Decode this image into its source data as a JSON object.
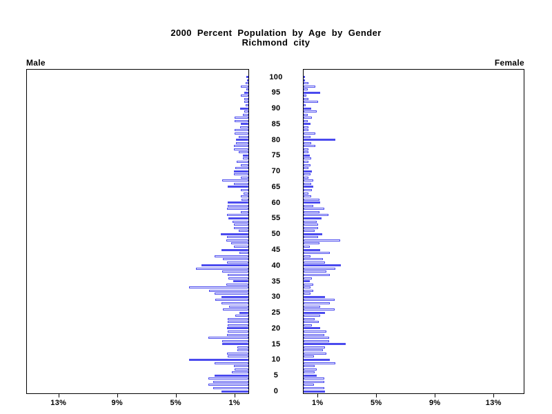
{
  "title": {
    "line1": "2000 Percent Population by Age by Gender",
    "line2": "Richmond city"
  },
  "labels": {
    "male": "Male",
    "female": "Female"
  },
  "colors": {
    "bar_blue": "#4a4aee",
    "axis_black": "#000000",
    "background": "#ffffff"
  },
  "chart_data": {
    "type": "bar",
    "subtype": "population-pyramid",
    "title": "2000 Percent Population by Age by Gender",
    "subtitle": "Richmond city",
    "unit": "percent of total population",
    "xlabel": "Percent",
    "ylabel": "Age (single years)",
    "xlim_pct": [
      0,
      15.2
    ],
    "age_range": [
      0,
      100
    ],
    "grid": false,
    "legend_position": "none",
    "style_note": "bars for ages divisible by 5 are solid blue; all other ages are white with blue outline",
    "x_ticks": [
      {
        "pct": 1,
        "label": "1%"
      },
      {
        "pct": 5,
        "label": "5%"
      },
      {
        "pct": 9,
        "label": "9%"
      },
      {
        "pct": 13,
        "label": "13%"
      }
    ],
    "age_ticks": [
      {
        "age": 0,
        "label": "0"
      },
      {
        "age": 5,
        "label": "5"
      },
      {
        "age": 10,
        "label": "10"
      },
      {
        "age": 15,
        "label": "15"
      },
      {
        "age": 20,
        "label": "20"
      },
      {
        "age": 25,
        "label": "25"
      },
      {
        "age": 30,
        "label": "30"
      },
      {
        "age": 35,
        "label": "35"
      },
      {
        "age": 40,
        "label": "40"
      },
      {
        "age": 45,
        "label": "45"
      },
      {
        "age": 50,
        "label": "50"
      },
      {
        "age": 55,
        "label": "55"
      },
      {
        "age": 60,
        "label": "60"
      },
      {
        "age": 65,
        "label": "65"
      },
      {
        "age": 70,
        "label": "70"
      },
      {
        "age": 75,
        "label": "75"
      },
      {
        "age": 80,
        "label": "80"
      },
      {
        "age": 85,
        "label": "85"
      },
      {
        "age": 90,
        "label": "90"
      },
      {
        "age": 95,
        "label": "95"
      },
      {
        "age": 100,
        "label": "100"
      }
    ],
    "series": [
      {
        "name": "Male",
        "side": "left",
        "ages": "0-100 ascending",
        "values_pct": [
          1.85,
          2.4,
          2.75,
          2.4,
          2.75,
          2.3,
          1.15,
          0.95,
          1.0,
          2.3,
          4.05,
          1.4,
          1.45,
          0.75,
          0.75,
          1.8,
          1.8,
          2.75,
          1.45,
          1.4,
          1.45,
          1.4,
          1.4,
          1.4,
          0.9,
          0.6,
          1.75,
          1.3,
          1.85,
          2.25,
          1.85,
          2.3,
          2.7,
          4.05,
          1.5,
          1.05,
          1.35,
          1.4,
          1.8,
          3.6,
          3.2,
          1.45,
          1.75,
          2.3,
          0.6,
          1.85,
          1.0,
          1.2,
          1.5,
          1.45,
          1.9,
          0.65,
          1.0,
          1.0,
          1.1,
          1.35,
          1.45,
          0.5,
          1.45,
          1.4,
          1.4,
          0.45,
          0.5,
          0.35,
          0.5,
          1.4,
          1.0,
          1.8,
          0.5,
          1.0,
          1.0,
          0.9,
          0.5,
          0.8,
          0.4,
          0.4,
          0.65,
          1.0,
          1.0,
          0.85,
          0.85,
          0.65,
          0.95,
          0.95,
          0.55,
          0.5,
          0.95,
          0.95,
          0.4,
          0.3,
          0.55,
          0.2,
          0.3,
          0.3,
          0.5,
          0.3,
          0.15,
          0.5,
          0.2,
          0.1,
          0.15
        ]
      },
      {
        "name": "Female",
        "side": "right",
        "ages": "0-100 ascending",
        "values_pct": [
          1.45,
          1.4,
          0.7,
          1.4,
          1.4,
          0.9,
          0.75,
          0.9,
          0.75,
          2.15,
          1.8,
          0.7,
          1.55,
          1.3,
          1.45,
          2.85,
          1.75,
          1.75,
          1.4,
          1.55,
          1.15,
          0.55,
          1.05,
          0.75,
          1.15,
          1.45,
          2.1,
          1.15,
          1.8,
          2.1,
          1.45,
          0.45,
          0.65,
          0.45,
          0.65,
          0.4,
          0.55,
          1.8,
          1.55,
          2.15,
          2.55,
          1.45,
          1.3,
          0.45,
          1.8,
          1.15,
          0.4,
          1.1,
          2.5,
          1.0,
          1.25,
          0.75,
          1.0,
          1.0,
          0.9,
          1.2,
          1.7,
          1.1,
          1.4,
          0.65,
          1.15,
          1.1,
          0.5,
          0.35,
          0.55,
          0.65,
          0.5,
          0.65,
          0.35,
          0.45,
          0.55,
          0.35,
          0.45,
          0.35,
          0.5,
          0.4,
          0.35,
          0.35,
          0.8,
          0.5,
          2.15,
          0.45,
          0.8,
          0.35,
          0.35,
          0.45,
          0.3,
          0.55,
          0.3,
          0.9,
          0.5,
          0.15,
          1.0,
          0.35,
          0.2,
          1.15,
          0.3,
          0.8,
          0.35,
          0.1,
          0.1
        ]
      }
    ]
  }
}
